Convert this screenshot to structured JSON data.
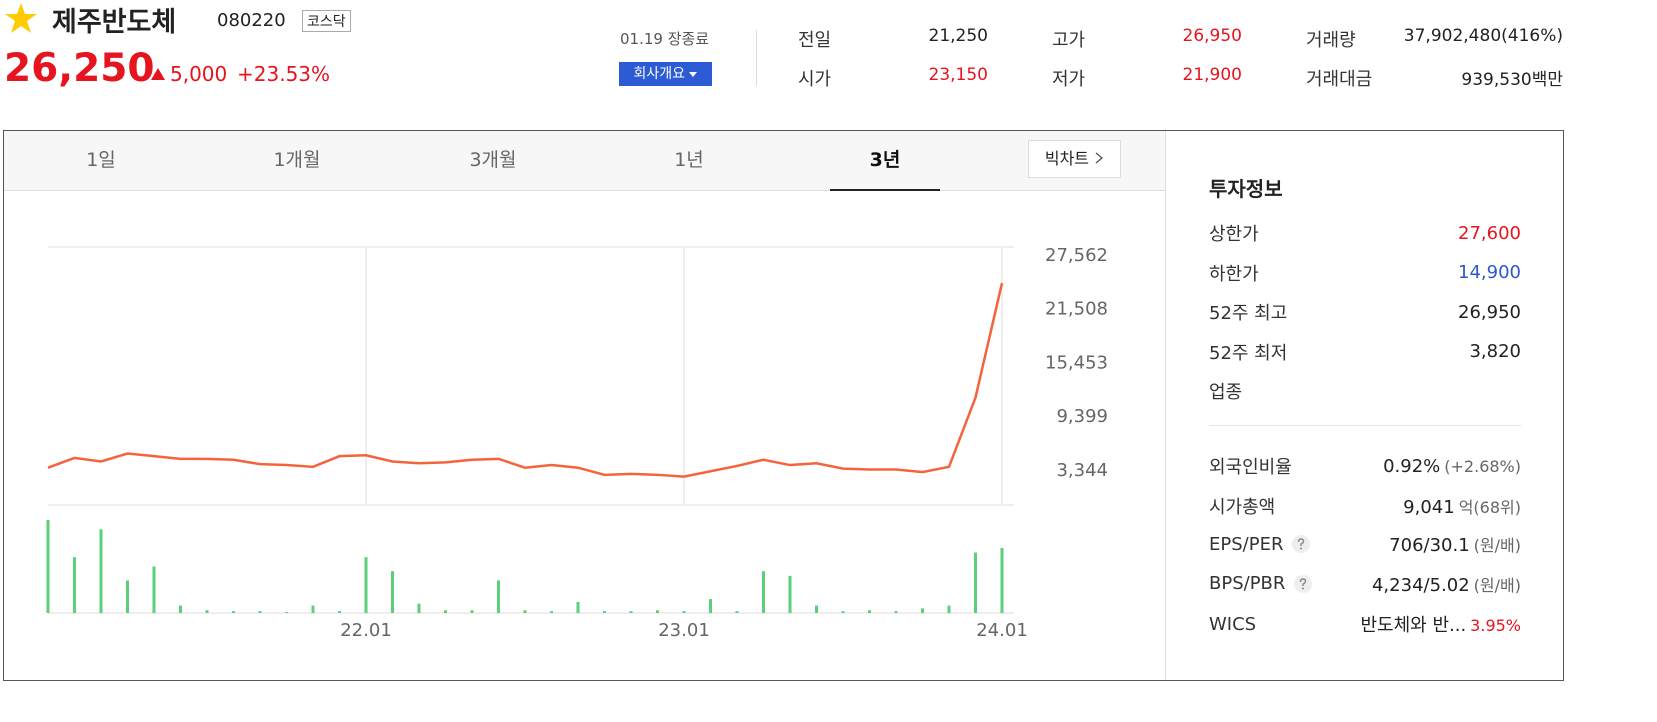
{
  "header": {
    "name": "제주반도체",
    "code": "080220",
    "market": "코스닥",
    "price": "26,250",
    "change": "5,000",
    "rate": "+23.53%",
    "date": "01.19 장종료",
    "company_button": "회사개요"
  },
  "summary": [
    {
      "label": "전일",
      "value": "21,250",
      "color": "#222"
    },
    {
      "label": "시가",
      "value": "23,150",
      "color": "#e5141e"
    },
    {
      "label": "고가",
      "value": "26,950",
      "color": "#e5141e"
    },
    {
      "label": "저가",
      "value": "21,900",
      "color": "#e5141e"
    },
    {
      "label": "거래량",
      "value": "37,902,480(416%)",
      "color": "#222"
    },
    {
      "label": "거래대금",
      "value": "939,530",
      "unit": "백만",
      "color": "#222"
    }
  ],
  "tabs": [
    "1일",
    "1개월",
    "3개월",
    "1년",
    "3년"
  ],
  "active_tab": 4,
  "bigchart": "빅차트",
  "chart_data": {
    "type": "line",
    "categories": [
      null,
      null,
      null,
      null,
      null,
      null,
      null,
      null,
      null,
      null,
      null,
      null,
      "22.01",
      null,
      null,
      null,
      null,
      null,
      null,
      null,
      null,
      null,
      null,
      null,
      "23.01",
      null,
      null,
      null,
      null,
      null,
      null,
      null,
      null,
      null,
      null,
      null,
      "24.01"
    ],
    "series": [
      {
        "color": "#f4643c",
        "values": [
          3600,
          4700,
          4300,
          5200,
          4900,
          4600,
          4600,
          4500,
          4000,
          3900,
          3700,
          4900,
          5000,
          4300,
          4100,
          4200,
          4500,
          4600,
          3600,
          3900,
          3600,
          2800,
          2900,
          2800,
          2600,
          3200,
          3800,
          4500,
          3900,
          4100,
          3500,
          3400,
          3400,
          3100,
          3700,
          11500,
          24400
        ]
      },
      {
        "color": "#5ad07a",
        "axis": "y2",
        "values": [
          100,
          60,
          90,
          35,
          50,
          8,
          3,
          2,
          2,
          1,
          8,
          2,
          60,
          45,
          10,
          3,
          3,
          35,
          3,
          2,
          12,
          2,
          2,
          3,
          2,
          15,
          2,
          45,
          40,
          8,
          2,
          3,
          2,
          5,
          8,
          65,
          70
        ]
      }
    ],
    "ylim": [
      -600,
      28460
    ],
    "yticks": [
      {
        "value": 27562,
        "label": "27,562"
      },
      {
        "value": 21508,
        "label": "21,508"
      },
      {
        "value": 15453,
        "label": "15,453"
      },
      {
        "value": 9399,
        "label": "9,399"
      },
      {
        "value": 3344,
        "label": "3,344"
      }
    ],
    "y2lim": [
      0,
      100
    ]
  },
  "invest": {
    "title": "투자정보",
    "rows": [
      {
        "label": "상한가",
        "value": "27,600",
        "color": "#e5141e"
      },
      {
        "label": "하한가",
        "value": "14,900",
        "color": "#2a58cf"
      },
      {
        "label": "52주 최고",
        "value": "26,950",
        "color": "#222"
      },
      {
        "label": "52주 최저",
        "value": "3,820",
        "color": "#222"
      },
      {
        "label": "업종"
      }
    ],
    "rows2": [
      {
        "label": "외국인비율",
        "value": "0.92%",
        "note": "(+2.68%)"
      },
      {
        "label": "시가총액",
        "value": "9,041",
        "note": "억(68위)"
      },
      {
        "label": "EPS/PER",
        "value": "706/30.1",
        "note": "(원/배)",
        "help": true
      },
      {
        "label": "BPS/PBR",
        "value": "4,234/5.02",
        "note": "(원/배)",
        "help": true
      },
      {
        "label": "WICS",
        "value": "반도체와 반...",
        "note": "3.95%",
        "note_color": "#e5141e"
      }
    ]
  }
}
